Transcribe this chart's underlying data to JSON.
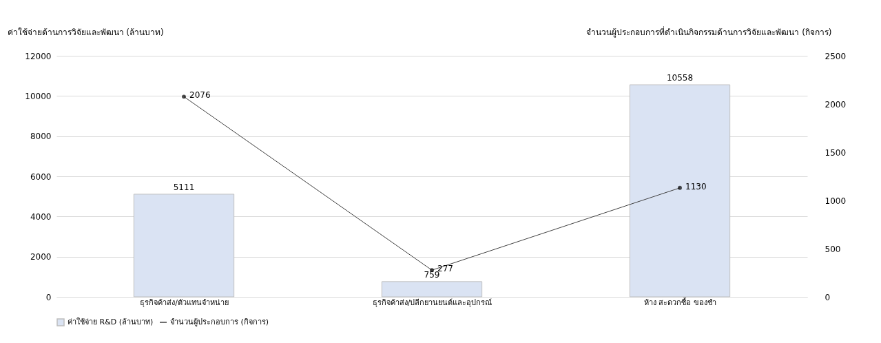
{
  "chart_data": {
    "type": "bar",
    "ylabel": "ค่าใช้จ่ายด้านการวิจัยและพัฒนา  (ล้านบาท)",
    "y2label": "จำนวนผู้ประกอบการที่ดำเนินกิจกรรมด้านการวิจัยและพัฒนา (กิจการ)",
    "categories": [
      "ธุรกิจค้าส่ง/ตัวแทนจำหน่าย",
      "ธุรกิจค้าส่ง/ปลีกยานยนต์และอุปกรณ์",
      "ห้าง สะดวกซื้อ ของชำ"
    ],
    "series": [
      {
        "name": "ค่าใช้จ่าย R&D (ล้านบาท)",
        "color": "#dae3f3",
        "values": [
          5111,
          759,
          10558
        ]
      },
      {
        "name": "จำนวนผู้ประกอบการ (กิจการ)",
        "type": "line",
        "axis": "y2",
        "color": "#404040",
        "marker": "circle",
        "values": [
          2076,
          277,
          1130
        ]
      }
    ],
    "ylim": [
      0,
      12000
    ],
    "yticks": [
      0,
      2000,
      4000,
      6000,
      8000,
      10000,
      12000
    ],
    "y2lim": [
      0,
      2500
    ],
    "y2ticks": [
      0,
      500,
      1000,
      1500,
      2000,
      2500
    ],
    "data_labels": true,
    "grid": "y",
    "legend": "bottom"
  }
}
